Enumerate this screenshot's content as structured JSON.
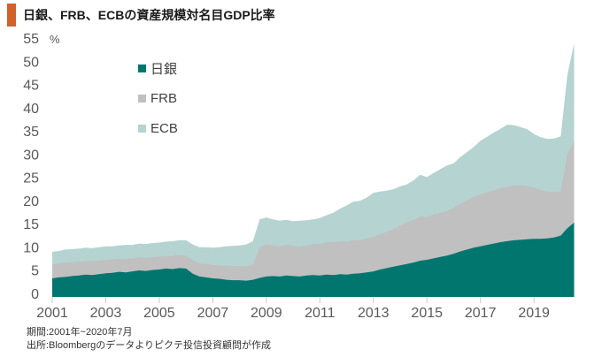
{
  "title": {
    "text": "日銀、FRB、ECBの資産規模対名目GDP比率",
    "accent_color": "#d2622b"
  },
  "legend": [
    {
      "label": "日銀",
      "color": "#00766e"
    },
    {
      "label": "FRB",
      "color": "#c0c0c0"
    },
    {
      "label": "ECB",
      "color": "#b5d3d0"
    }
  ],
  "footer": {
    "line1": "期間:2001年~2020年7月",
    "line2": "出所:Bloombergのデータよりピクテ投信投資顧問が作成"
  },
  "chart_data": {
    "type": "area",
    "stacked": true,
    "title": "日銀、FRB、ECBの資産規模対名目GDP比率",
    "unit_label": "%",
    "x_start": 2001.0,
    "x_step": 0.25,
    "x_end": 2020.5,
    "x_ticks": [
      2001,
      2003,
      2005,
      2007,
      2009,
      2011,
      2013,
      2015,
      2017,
      2019
    ],
    "y_ticks": [
      0,
      5,
      10,
      15,
      20,
      25,
      30,
      35,
      40,
      45,
      50,
      55
    ],
    "ylim": [
      0,
      55
    ],
    "grid": false,
    "legend_position": "upper-left-inside",
    "axis_label_color": "#595959",
    "series": [
      {
        "name": "日銀",
        "color": "#00766e",
        "values": [
          4.0,
          4.2,
          4.3,
          4.5,
          4.6,
          4.8,
          4.7,
          4.9,
          5.1,
          5.2,
          5.4,
          5.3,
          5.5,
          5.7,
          5.6,
          5.8,
          5.9,
          6.1,
          6.0,
          6.2,
          6.1,
          5.0,
          4.4,
          4.2,
          4.0,
          3.9,
          3.7,
          3.6,
          3.6,
          3.5,
          3.7,
          4.1,
          4.4,
          4.5,
          4.4,
          4.6,
          4.5,
          4.4,
          4.6,
          4.7,
          4.6,
          4.8,
          4.7,
          4.9,
          4.8,
          5.0,
          5.1,
          5.3,
          5.5,
          5.9,
          6.2,
          6.5,
          6.8,
          7.1,
          7.4,
          7.8,
          8.0,
          8.3,
          8.6,
          8.9,
          9.3,
          9.8,
          10.2,
          10.6,
          10.9,
          11.2,
          11.5,
          11.8,
          12.0,
          12.2,
          12.3,
          12.4,
          12.5,
          12.5,
          12.6,
          12.8,
          13.2,
          14.8,
          16.0
        ]
      },
      {
        "name": "FRB",
        "color": "#c0c0c0",
        "values": [
          3.0,
          3.0,
          3.1,
          3.0,
          3.0,
          2.9,
          3.0,
          2.9,
          2.9,
          2.9,
          2.8,
          2.9,
          2.8,
          2.8,
          2.8,
          2.7,
          2.8,
          2.7,
          2.8,
          2.8,
          2.8,
          2.9,
          2.8,
          2.9,
          2.9,
          2.9,
          3.0,
          3.0,
          3.0,
          3.1,
          3.3,
          6.6,
          6.9,
          6.6,
          6.5,
          6.6,
          6.5,
          6.4,
          6.5,
          6.7,
          6.8,
          7.0,
          7.1,
          7.1,
          7.1,
          7.2,
          7.1,
          7.3,
          7.4,
          7.6,
          7.8,
          8.1,
          8.6,
          8.9,
          9.2,
          9.5,
          9.2,
          9.4,
          9.5,
          9.6,
          9.9,
          10.3,
          10.6,
          10.9,
          11.1,
          11.3,
          11.5,
          11.6,
          11.7,
          11.8,
          11.7,
          11.5,
          11.0,
          10.5,
          10.1,
          9.8,
          9.5,
          16.0,
          17.6
        ]
      },
      {
        "name": "ECB",
        "color": "#b5d3d0",
        "values": [
          2.7,
          2.7,
          2.8,
          2.8,
          2.8,
          2.9,
          2.8,
          2.9,
          2.9,
          2.8,
          2.9,
          3.0,
          2.9,
          3.0,
          3.0,
          3.1,
          3.0,
          3.1,
          3.2,
          3.2,
          3.3,
          3.4,
          3.5,
          3.6,
          3.7,
          3.9,
          4.2,
          4.4,
          4.5,
          4.7,
          5.0,
          6.0,
          5.8,
          5.6,
          5.5,
          5.4,
          5.3,
          5.6,
          5.4,
          5.3,
          5.6,
          5.8,
          6.3,
          7.0,
          7.8,
          8.3,
          8.5,
          8.8,
          9.5,
          9.2,
          8.9,
          8.6,
          8.4,
          8.2,
          8.5,
          9.0,
          8.6,
          9.0,
          9.4,
          9.8,
          9.6,
          10.0,
          10.4,
          10.8,
          11.6,
          12.0,
          12.4,
          12.8,
          13.4,
          13.0,
          12.6,
          12.2,
          11.6,
          11.4,
          11.3,
          11.5,
          11.9,
          17.0,
          21.0
        ]
      }
    ]
  }
}
